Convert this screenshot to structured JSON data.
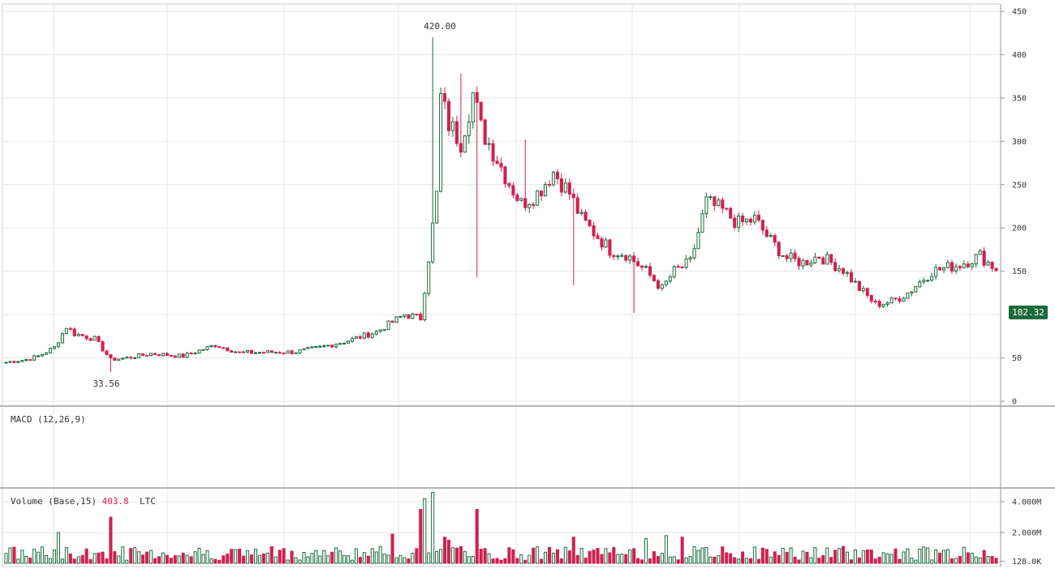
{
  "chart_data": {
    "type": "candlestick",
    "colors": {
      "up": "#1b6b3a",
      "down": "#d1204f",
      "grid": "#e6e6e6",
      "axis": "#9a9a9a",
      "price_tag": "#1d6b3a"
    },
    "price_axis": {
      "ticks": [
        "450",
        "400",
        "350",
        "300",
        "250",
        "200",
        "150",
        "50",
        "0"
      ],
      "range": [
        0,
        450
      ]
    },
    "annotations": {
      "high": "420.00",
      "low": "33.56"
    },
    "last_price": "102.32",
    "macd_label": "MACD (12,26,9)",
    "volume": {
      "label_prefix": "Volume (Base,15)",
      "value": "403.8",
      "unit": "LTC",
      "ticks": [
        "4.000M",
        "2.000M",
        "128.0K"
      ],
      "range": [
        0,
        4600000
      ]
    },
    "anchors": [
      [
        0,
        45
      ],
      [
        5,
        48
      ],
      [
        8,
        52
      ],
      [
        12,
        62
      ],
      [
        15,
        86
      ],
      [
        17,
        78
      ],
      [
        22,
        72
      ],
      [
        26,
        48
      ],
      [
        30,
        50
      ],
      [
        36,
        55
      ],
      [
        44,
        52
      ],
      [
        52,
        65
      ],
      [
        58,
        56
      ],
      [
        72,
        57
      ],
      [
        78,
        62
      ],
      [
        85,
        70
      ],
      [
        92,
        80
      ],
      [
        99,
        100
      ],
      [
        103,
        96
      ],
      [
        104,
        130
      ],
      [
        107,
        238
      ],
      [
        108,
        350
      ],
      [
        110,
        320
      ],
      [
        113,
        300
      ],
      [
        116,
        355
      ],
      [
        118,
        315
      ],
      [
        122,
        280
      ],
      [
        125,
        252
      ],
      [
        128,
        228
      ],
      [
        132,
        240
      ],
      [
        136,
        265
      ],
      [
        140,
        240
      ],
      [
        143,
        210
      ],
      [
        147,
        190
      ],
      [
        150,
        175
      ],
      [
        154,
        170
      ],
      [
        159,
        150
      ],
      [
        163,
        130
      ],
      [
        166,
        150
      ],
      [
        170,
        160
      ],
      [
        174,
        230
      ],
      [
        178,
        220
      ],
      [
        182,
        205
      ],
      [
        186,
        210
      ],
      [
        190,
        185
      ],
      [
        194,
        165
      ],
      [
        198,
        160
      ],
      [
        202,
        168
      ],
      [
        208,
        152
      ],
      [
        212,
        130
      ],
      [
        216,
        112
      ],
      [
        220,
        115
      ],
      [
        224,
        125
      ],
      [
        230,
        150
      ],
      [
        237,
        158
      ],
      [
        242,
        168
      ],
      [
        244,
        160
      ],
      [
        246,
        153
      ]
    ],
    "volume_spikes": [
      [
        13,
        2.0
      ],
      [
        26,
        3.0
      ],
      [
        96,
        1.9
      ],
      [
        103,
        3.5
      ],
      [
        104,
        4.2
      ],
      [
        106,
        4.6
      ],
      [
        109,
        1.7
      ],
      [
        110,
        1.5
      ],
      [
        117,
        3.5
      ],
      [
        141,
        1.7
      ],
      [
        159,
        1.6
      ],
      [
        164,
        1.8
      ],
      [
        168,
        1.7
      ]
    ],
    "bar_count": 247
  }
}
